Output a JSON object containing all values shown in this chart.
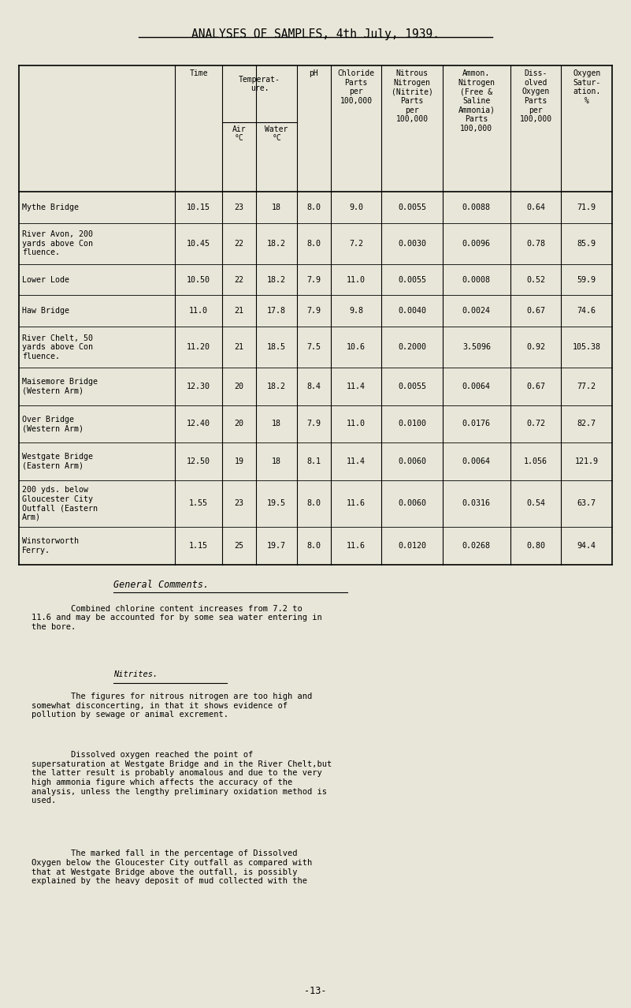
{
  "title": "ANALYSES OF SAMPLES, 4th July, 1939.",
  "bg_color": "#e8e6d8",
  "col_headers_text": [
    "",
    "Time",
    "Temperat-\nure.",
    "",
    "pH",
    "Chloride\nParts\nper\n100,000",
    "Nitrous\nNitrogen\n(Nitrite)\nParts\nper\n100,000",
    "Ammon.\nNitrogen\n(Free &\nSaline\nAmmonia)\nParts\n100,000",
    "Diss-\nolved\nOxygen\nParts\nper\n100,000",
    "Oxygen\nSatur-\nation.\n%"
  ],
  "rows": [
    [
      "Mythe Bridge",
      "10.15",
      "23",
      "18",
      "8.0",
      "9.0",
      "0.0055",
      "0.0088",
      "0.64",
      "71.9"
    ],
    [
      "River Avon, 200\nyards above Con\nfluence.",
      "10.45",
      "22",
      "18.2",
      "8.0",
      "7.2",
      "0.0030",
      "0.0096",
      "0.78",
      "85.9"
    ],
    [
      "Lower Lode",
      "10.50",
      "22",
      "18.2",
      "7.9",
      "11.0",
      "0.0055",
      "0.0008",
      "0.52",
      "59.9"
    ],
    [
      "Haw Bridge",
      "11.0",
      "21",
      "17.8",
      "7.9",
      "9.8",
      "0.0040",
      "0.0024",
      "0.67",
      "74.6"
    ],
    [
      "River Chelt, 50\nyards above Con\nfluence.",
      "11.20",
      "21",
      "18.5",
      "7.5",
      "10.6",
      "0.2000",
      "3.5096",
      "0.92",
      "105.38"
    ],
    [
      "Maisemore Bridge\n(Western Arm)",
      "12.30",
      "20",
      "18.2",
      "8.4",
      "11.4",
      "0.0055",
      "0.0064",
      "0.67",
      "77.2"
    ],
    [
      "Over Bridge\n(Western Arm)",
      "12.40",
      "20",
      "18",
      "7.9",
      "11.0",
      "0.0100",
      "0.0176",
      "0.72",
      "82.7"
    ],
    [
      "Westgate Bridge\n(Eastern Arm)",
      "12.50",
      "19",
      "18",
      "8.1",
      "11.4",
      "0.0060",
      "0.0064",
      "1.056",
      "121.9"
    ],
    [
      "200 yds. below\nGloucester City\nOutfall (Eastern\nArm)",
      "1.55",
      "23",
      "19.5",
      "8.0",
      "11.6",
      "0.0060",
      "0.0316",
      "0.54",
      "63.7"
    ],
    [
      "Winstorworth\nFerry.",
      "1.15",
      "25",
      "19.7",
      "8.0",
      "11.6",
      "0.0120",
      "0.0268",
      "0.80",
      "94.4"
    ]
  ],
  "comments_title": "General Comments.",
  "comment1": "        Combined chlorine content increases from 7.2 to\n11.6 and may be accounted for by some sea water entering in\nthe bore.",
  "nitrites_label": "Nitrites.",
  "comment2": "        The figures for nitrous nitrogen are too high and\nsomewhat disconcerting, in that it shows evidence of\npollution by sewage or animal excrement.",
  "comment3": "        Dissolved oxygen reached the point of\nsupersaturation at Westgate Bridge and in the River Chelt,but\nthe latter result is probably anomalous and due to the very\nhigh ammonia figure which affects the accuracy of the\nanalysis, unless the lengthy preliminary oxidation method is\nused.",
  "comment4": "        The marked fall in the percentage of Dissolved\nOxygen below the Gloucester City outfall as compared with\nthat at Westgate Bridge above the outfall, is possibly\nexplained by the heavy deposit of mud collected with the",
  "page_number": "-13-"
}
